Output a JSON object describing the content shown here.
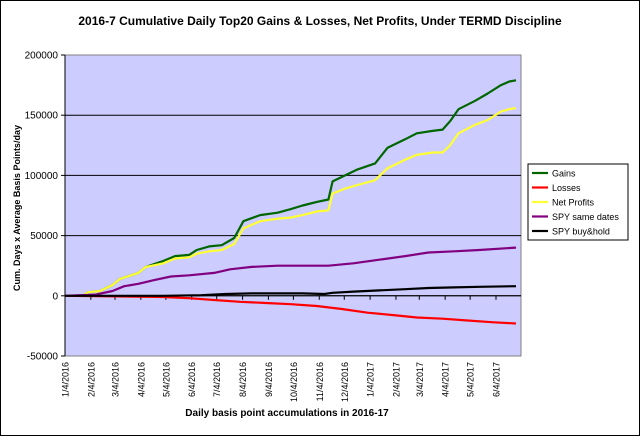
{
  "chart_data": {
    "type": "line",
    "title": "2016-7 Cumulative Daily Top20 Gains & Losses, Net Profits, Under TERMD Discipline",
    "xlabel": "Daily basis point accumulations in 2016-17",
    "ylabel": "Cum. Days x Average Basis Points/day",
    "ylim": [
      -50000,
      200000
    ],
    "yticks": [
      -50000,
      0,
      50000,
      100000,
      150000,
      200000
    ],
    "ytick_labels": [
      "-50000",
      "0",
      "50000",
      "100000",
      "150000",
      "200000"
    ],
    "xlim": [
      "2016-01-04",
      "2017-07-04"
    ],
    "xtick_labels": [
      "1/4/2016",
      "2/4/2016",
      "3/4/2016",
      "4/4/2016",
      "5/4/2016",
      "6/4/2016",
      "7/4/2016",
      "8/4/2016",
      "9/4/2016",
      "10/4/2016",
      "11/4/2016",
      "12/4/2016",
      "1/4/2017",
      "2/4/2017",
      "3/4/2017",
      "4/4/2017",
      "5/4/2017",
      "6/4/2017"
    ],
    "grid": "horizontal",
    "plot_background": "#ccccff",
    "legend_position": "right",
    "series": [
      {
        "name": "Gains",
        "color": "#006600",
        "points": [
          [
            "2016-01-25",
            0
          ],
          [
            "2016-02-01",
            3000
          ],
          [
            "2016-02-15",
            4000
          ],
          [
            "2016-03-01",
            9000
          ],
          [
            "2016-03-10",
            14000
          ],
          [
            "2016-04-01",
            19000
          ],
          [
            "2016-04-10",
            24000
          ],
          [
            "2016-05-01",
            29000
          ],
          [
            "2016-05-15",
            33000
          ],
          [
            "2016-06-01",
            34000
          ],
          [
            "2016-06-10",
            38000
          ],
          [
            "2016-06-25",
            41000
          ],
          [
            "2016-07-10",
            42000
          ],
          [
            "2016-07-25",
            48000
          ],
          [
            "2016-08-05",
            62000
          ],
          [
            "2016-08-25",
            67000
          ],
          [
            "2016-09-15",
            69000
          ],
          [
            "2016-10-01",
            72000
          ],
          [
            "2016-10-15",
            75000
          ],
          [
            "2016-11-01",
            78000
          ],
          [
            "2016-11-15",
            80000
          ],
          [
            "2016-11-20",
            95000
          ],
          [
            "2016-12-05",
            100000
          ],
          [
            "2016-12-20",
            105000
          ],
          [
            "2017-01-10",
            110000
          ],
          [
            "2017-01-25",
            123000
          ],
          [
            "2017-02-15",
            130000
          ],
          [
            "2017-03-01",
            135000
          ],
          [
            "2017-03-20",
            137000
          ],
          [
            "2017-04-01",
            138000
          ],
          [
            "2017-04-10",
            145000
          ],
          [
            "2017-04-20",
            155000
          ],
          [
            "2017-05-10",
            162000
          ],
          [
            "2017-05-25",
            168000
          ],
          [
            "2017-06-10",
            175000
          ],
          [
            "2017-06-20",
            178000
          ],
          [
            "2017-06-28",
            179000
          ]
        ]
      },
      {
        "name": "Losses",
        "color": "#ff0000",
        "points": [
          [
            "2016-01-04",
            0
          ],
          [
            "2016-05-01",
            -1000
          ],
          [
            "2016-06-01",
            -2000
          ],
          [
            "2016-07-01",
            -3500
          ],
          [
            "2016-08-01",
            -5000
          ],
          [
            "2016-09-01",
            -6000
          ],
          [
            "2016-10-01",
            -7000
          ],
          [
            "2016-11-01",
            -8500
          ],
          [
            "2016-12-01",
            -11000
          ],
          [
            "2017-01-01",
            -14000
          ],
          [
            "2017-02-01",
            -16000
          ],
          [
            "2017-03-01",
            -18000
          ],
          [
            "2017-04-01",
            -19000
          ],
          [
            "2017-05-01",
            -20500
          ],
          [
            "2017-06-01",
            -22000
          ],
          [
            "2017-06-28",
            -23000
          ]
        ]
      },
      {
        "name": "Net Profits",
        "color": "#ffff33",
        "points": [
          [
            "2016-01-25",
            0
          ],
          [
            "2016-02-01",
            3000
          ],
          [
            "2016-02-15",
            4000
          ],
          [
            "2016-03-01",
            9000
          ],
          [
            "2016-03-10",
            14000
          ],
          [
            "2016-04-01",
            19000
          ],
          [
            "2016-04-10",
            24000
          ],
          [
            "2016-05-01",
            27000
          ],
          [
            "2016-05-15",
            31000
          ],
          [
            "2016-06-01",
            32000
          ],
          [
            "2016-06-10",
            35000
          ],
          [
            "2016-06-25",
            37000
          ],
          [
            "2016-07-10",
            38000
          ],
          [
            "2016-07-25",
            43000
          ],
          [
            "2016-08-05",
            56000
          ],
          [
            "2016-08-25",
            62000
          ],
          [
            "2016-09-15",
            64000
          ],
          [
            "2016-10-01",
            65000
          ],
          [
            "2016-10-15",
            67000
          ],
          [
            "2016-11-01",
            70000
          ],
          [
            "2016-11-15",
            71000
          ],
          [
            "2016-11-20",
            85000
          ],
          [
            "2016-12-05",
            89000
          ],
          [
            "2016-12-20",
            92000
          ],
          [
            "2017-01-10",
            96000
          ],
          [
            "2017-01-25",
            106000
          ],
          [
            "2017-02-15",
            113000
          ],
          [
            "2017-03-01",
            117000
          ],
          [
            "2017-03-20",
            119000
          ],
          [
            "2017-04-01",
            119000
          ],
          [
            "2017-04-10",
            125000
          ],
          [
            "2017-04-20",
            135000
          ],
          [
            "2017-05-10",
            142000
          ],
          [
            "2017-05-25",
            146000
          ],
          [
            "2017-06-10",
            153000
          ],
          [
            "2017-06-20",
            155000
          ],
          [
            "2017-06-28",
            156000
          ]
        ]
      },
      {
        "name": "SPY same dates",
        "color": "#800080",
        "points": [
          [
            "2016-01-04",
            0
          ],
          [
            "2016-02-10",
            1000
          ],
          [
            "2016-03-01",
            4000
          ],
          [
            "2016-03-15",
            8000
          ],
          [
            "2016-04-01",
            10000
          ],
          [
            "2016-04-20",
            13000
          ],
          [
            "2016-05-10",
            16000
          ],
          [
            "2016-06-01",
            17000
          ],
          [
            "2016-07-01",
            19000
          ],
          [
            "2016-07-20",
            22000
          ],
          [
            "2016-08-15",
            24000
          ],
          [
            "2016-09-15",
            25000
          ],
          [
            "2016-11-15",
            25000
          ],
          [
            "2016-12-15",
            27000
          ],
          [
            "2017-01-15",
            30000
          ],
          [
            "2017-02-15",
            33000
          ],
          [
            "2017-03-15",
            36000
          ],
          [
            "2017-04-15",
            37000
          ],
          [
            "2017-05-15",
            38000
          ],
          [
            "2017-06-28",
            40000
          ]
        ]
      },
      {
        "name": "SPY buy&hold",
        "color": "#000000",
        "points": [
          [
            "2016-01-04",
            0
          ],
          [
            "2016-03-01",
            0
          ],
          [
            "2016-05-01",
            0
          ],
          [
            "2016-06-15",
            500
          ],
          [
            "2016-07-15",
            1500
          ],
          [
            "2016-08-15",
            2000
          ],
          [
            "2016-10-15",
            2000
          ],
          [
            "2016-11-10",
            1500
          ],
          [
            "2016-11-20",
            2500
          ],
          [
            "2016-12-15",
            3500
          ],
          [
            "2017-01-15",
            4500
          ],
          [
            "2017-02-15",
            5500
          ],
          [
            "2017-03-15",
            6500
          ],
          [
            "2017-04-15",
            7000
          ],
          [
            "2017-05-15",
            7500
          ],
          [
            "2017-06-28",
            8000
          ]
        ]
      }
    ]
  }
}
